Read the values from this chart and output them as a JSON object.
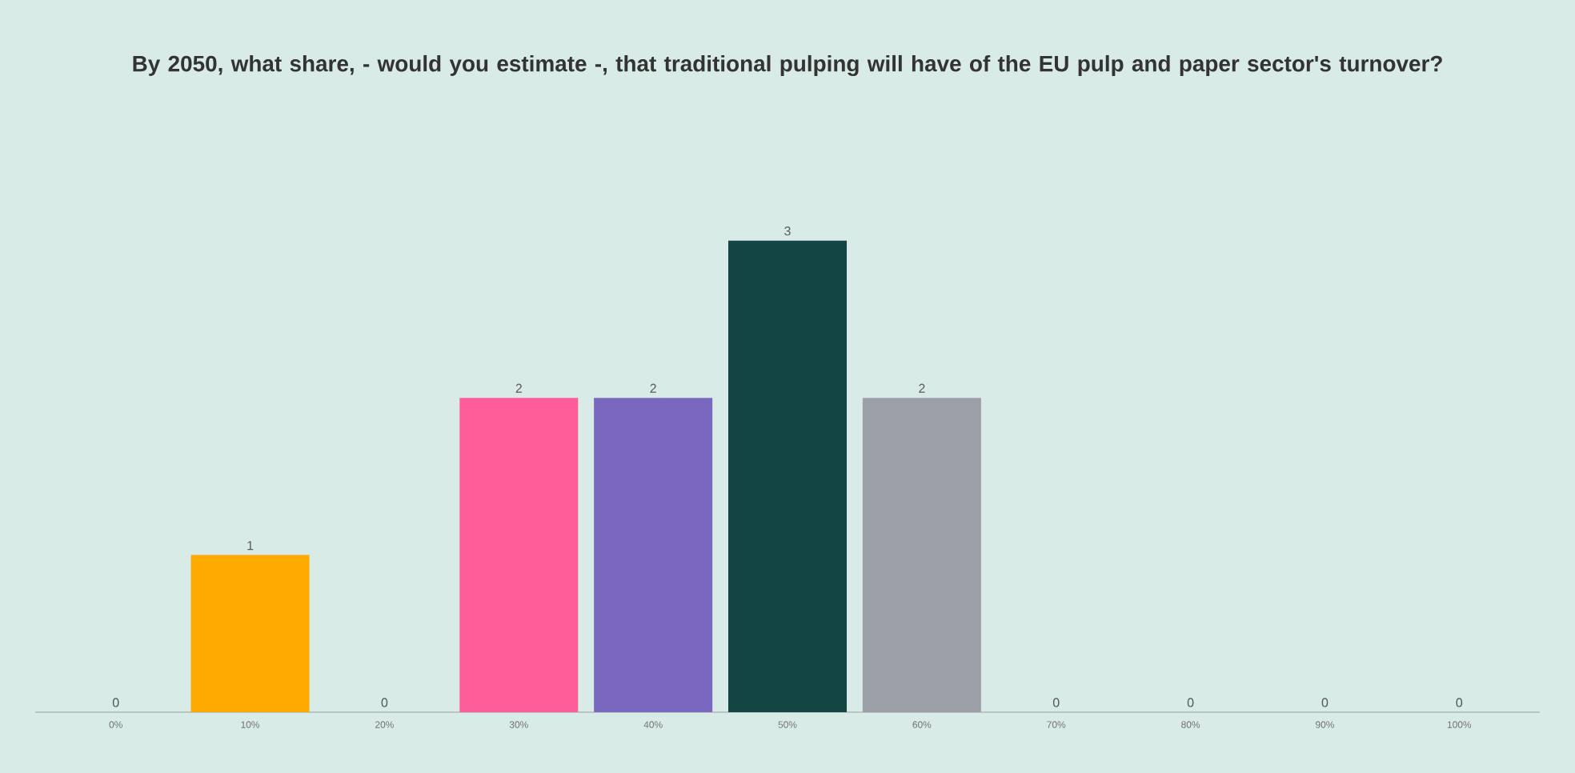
{
  "chart_data": {
    "type": "bar",
    "title": "By 2050, what share, - would you estimate -, that traditional pulping will have of the EU pulp and paper sector's turnover?",
    "categories": [
      "0%",
      "10%",
      "20%",
      "30%",
      "40%",
      "50%",
      "60%",
      "70%",
      "80%",
      "90%",
      "100%"
    ],
    "values": [
      0,
      1,
      0,
      2,
      2,
      3,
      2,
      0,
      0,
      0,
      0
    ],
    "colors": [
      "#9c9fa8",
      "#ffaa00",
      "#9c9fa8",
      "#ff5c9a",
      "#7a68c0",
      "#134545",
      "#9c9fa8",
      "#9c9fa8",
      "#9c9fa8",
      "#9c9fa8",
      "#9c9fa8"
    ],
    "data_labels": true
  }
}
